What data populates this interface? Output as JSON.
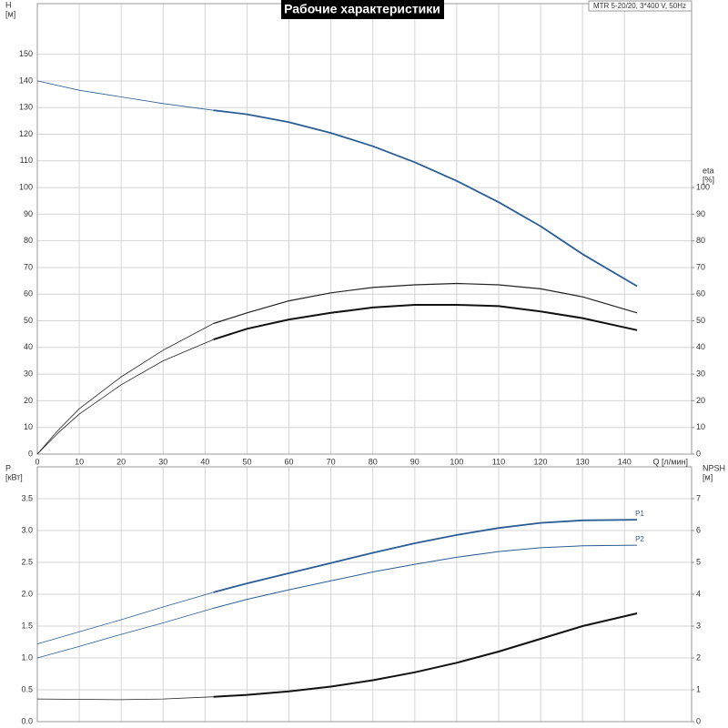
{
  "chart_data": [
    {
      "type": "line",
      "title": "Рабочие характеристики",
      "annotation": "MTR 5-20/20, 3*400 V, 50Hz",
      "ylabel": "H",
      "yunit": "[м]",
      "y2label": "eta",
      "y2unit": "[%]",
      "xlabel": "Q [л/мин]",
      "xlim": [
        0,
        156
      ],
      "xticks": [
        0,
        10,
        20,
        30,
        40,
        50,
        60,
        70,
        80,
        90,
        100,
        110,
        120,
        130,
        140
      ],
      "ylim": [
        0,
        169
      ],
      "yticks": [
        0,
        10,
        20,
        30,
        40,
        50,
        60,
        70,
        80,
        90,
        100,
        110,
        120,
        130,
        140,
        150
      ],
      "y2lim": [
        0,
        169
      ],
      "y2ticks": [
        0,
        10,
        20,
        30,
        40,
        50,
        60,
        70,
        80,
        90,
        100
      ],
      "grid": true,
      "series": [
        {
          "color": "#2a5d95",
          "width": 0.8,
          "x": [
            0,
            10,
            20,
            30,
            42
          ],
          "values": [
            140,
            136.5,
            134,
            131.5,
            129
          ]
        },
        {
          "color": "#2a5d95",
          "width": 1.8,
          "x": [
            42,
            50,
            60,
            70,
            80,
            90,
            100,
            110,
            120,
            130,
            143
          ],
          "values": [
            129,
            127.5,
            124.5,
            120.5,
            115.5,
            109.5,
            102.5,
            94.5,
            85.5,
            75,
            63
          ]
        },
        {
          "color": "#222222",
          "width": 0.8,
          "axis": "y2",
          "x": [
            0,
            5,
            10,
            20,
            30,
            42
          ],
          "values": [
            0,
            9,
            17,
            29,
            39,
            49
          ]
        },
        {
          "color": "#222222",
          "width": 1.2,
          "axis": "y2",
          "x": [
            42,
            50,
            60,
            70,
            80,
            90,
            100,
            110,
            120,
            130,
            143
          ],
          "values": [
            49,
            53,
            57.5,
            60.5,
            62.5,
            63.5,
            64,
            63.5,
            62,
            59,
            53
          ]
        },
        {
          "color": "#222222",
          "width": 0.8,
          "axis": "y2",
          "x": [
            0,
            5,
            10,
            20,
            30,
            42
          ],
          "values": [
            0,
            8,
            15,
            26,
            35,
            43
          ]
        },
        {
          "color": "#111111",
          "width": 2,
          "axis": "y2",
          "x": [
            42,
            50,
            60,
            70,
            80,
            90,
            100,
            110,
            120,
            130,
            143
          ],
          "values": [
            43,
            47,
            50.5,
            53,
            55,
            56,
            56,
            55.5,
            53.5,
            51,
            46.5
          ]
        }
      ]
    },
    {
      "type": "line",
      "ylabel": "P",
      "yunit": "[кВт]",
      "y2label": "NPSH",
      "y2unit": "[м]",
      "xlim": [
        0,
        156
      ],
      "xticks": [
        0,
        10,
        20,
        30,
        40,
        50,
        60,
        70,
        80,
        90,
        100,
        110,
        120,
        130,
        140
      ],
      "xtick_labels": false,
      "ylim": [
        0,
        4
      ],
      "yticks": [
        {
          "value": 0,
          "label": "0.0"
        },
        0.5,
        {
          "value": 1,
          "label": "1.0"
        },
        1.5,
        {
          "value": 2,
          "label": "2.0"
        },
        2.5,
        {
          "value": 3,
          "label": "3.0"
        },
        3.5
      ],
      "y2lim": [
        0,
        8
      ],
      "y2ticks": [
        0,
        1,
        2,
        3,
        4,
        5,
        6,
        7
      ],
      "grid": true,
      "series": [
        {
          "color": "#2a5d95",
          "width": 0.8,
          "x": [
            0,
            10,
            20,
            30,
            42
          ],
          "values": [
            1.22,
            1.41,
            1.6,
            1.8,
            2.03
          ]
        },
        {
          "name": "P1",
          "color": "#2a5d95",
          "width": 1.8,
          "x": [
            42,
            50,
            60,
            70,
            80,
            90,
            100,
            110,
            120,
            130,
            143
          ],
          "values": [
            2.03,
            2.17,
            2.33,
            2.49,
            2.65,
            2.8,
            2.93,
            3.04,
            3.12,
            3.16,
            3.17
          ]
        },
        {
          "color": "#2a5d95",
          "width": 0.8,
          "x": [
            0,
            10,
            20,
            30,
            42
          ],
          "values": [
            1.0,
            1.18,
            1.37,
            1.55,
            1.78
          ]
        },
        {
          "name": "P2",
          "color": "#2a5d95",
          "width": 1,
          "x": [
            42,
            50,
            60,
            70,
            80,
            90,
            100,
            110,
            120,
            130,
            143
          ],
          "values": [
            1.78,
            1.92,
            2.07,
            2.21,
            2.35,
            2.47,
            2.58,
            2.67,
            2.73,
            2.76,
            2.77
          ]
        },
        {
          "color": "#222222",
          "width": 0.8,
          "axis": "y2",
          "x": [
            0,
            10,
            20,
            30,
            42
          ],
          "values": [
            0.71,
            0.7,
            0.69,
            0.71,
            0.78
          ]
        },
        {
          "color": "#111111",
          "width": 2,
          "axis": "y2",
          "x": [
            42,
            50,
            60,
            70,
            80,
            90,
            100,
            110,
            120,
            130,
            143
          ],
          "values": [
            0.78,
            0.84,
            0.95,
            1.1,
            1.3,
            1.55,
            1.85,
            2.2,
            2.6,
            3.0,
            3.4
          ]
        }
      ]
    }
  ]
}
